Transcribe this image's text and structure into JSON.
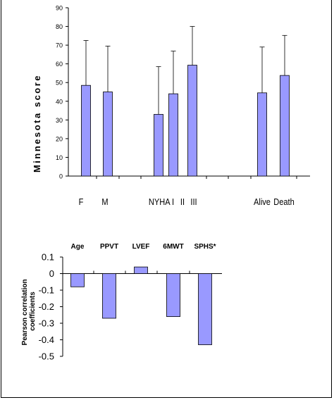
{
  "chart_data": [
    {
      "type": "bar",
      "ylabel": "Minnesota score",
      "ylim": [
        0,
        90
      ],
      "yticks": [
        0,
        10,
        20,
        30,
        40,
        50,
        60,
        70,
        80,
        90
      ],
      "error_bars": "upper",
      "categories": [
        "F",
        "M",
        "NYHA I",
        "II",
        "III",
        "Alive",
        "Death"
      ],
      "category_labels": [
        "F",
        "M",
        "NYHA I",
        "II",
        "III",
        "Alive",
        "Death"
      ],
      "values": [
        48.5,
        45,
        33,
        44,
        59.3,
        44.5,
        53.8
      ],
      "error_upper": [
        72.5,
        69.5,
        58.5,
        66.8,
        80,
        69,
        75.2
      ],
      "bar_color": "#9999ff",
      "grid": false
    },
    {
      "type": "bar",
      "ylabel": "Pearson correlation coefficients",
      "ylim": [
        -0.5,
        0.1
      ],
      "yticks": [
        "0.1",
        "0",
        "-0.1",
        "-0.2",
        "-0.3",
        "-0.4",
        "-0.5"
      ],
      "categories": [
        "Age",
        "PPVT",
        "LVEF",
        "6MWT",
        "SPHS*"
      ],
      "values": [
        -0.08,
        -0.27,
        0.04,
        -0.26,
        -0.43
      ],
      "bar_color": "#9999ff",
      "grid": false
    }
  ]
}
